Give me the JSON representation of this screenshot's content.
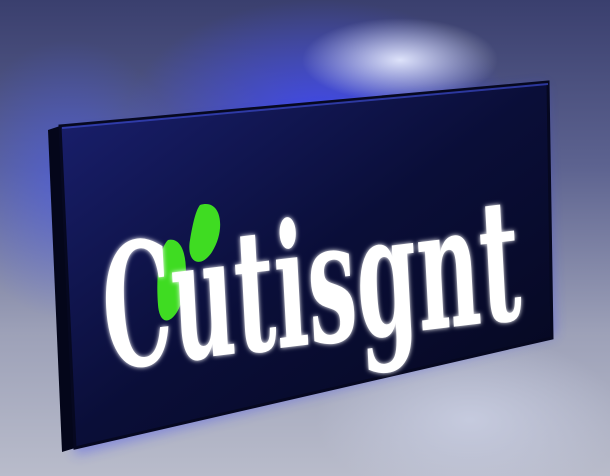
{
  "sign": {
    "text": "Cutisgnt",
    "text_color": "#ffffff",
    "accent_color": "#3fdc22",
    "panel_color": "#0b0f3a",
    "glow_color": "#2f3cff"
  }
}
